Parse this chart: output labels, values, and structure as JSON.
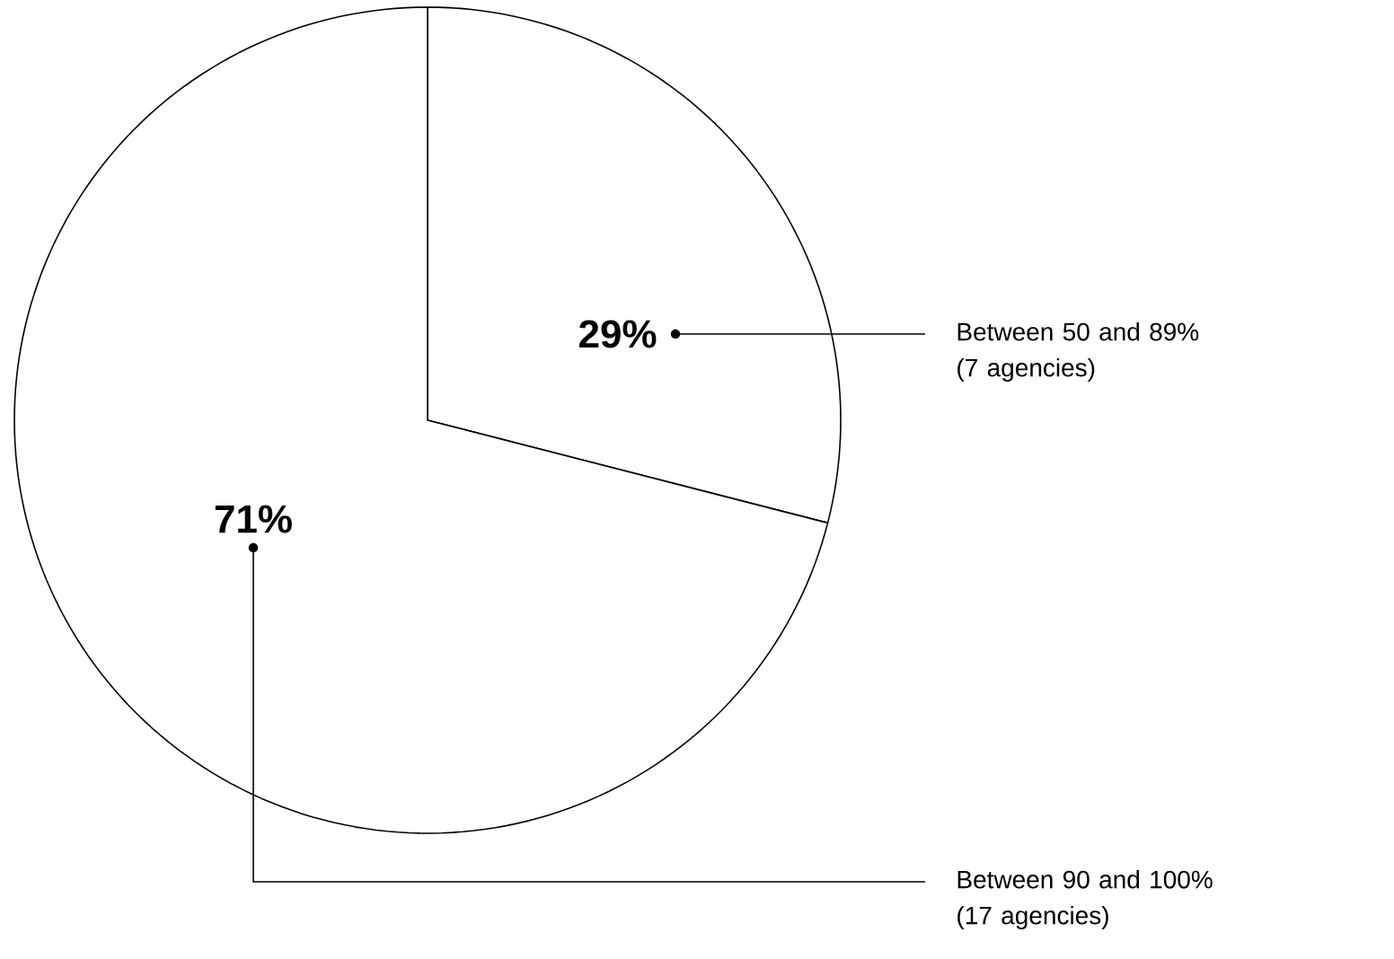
{
  "chart_data": {
    "type": "pie",
    "categories": [
      "Between 50 and 89% (7 agencies)",
      "Between 90 and 100% (17 agencies)"
    ],
    "values": [
      29,
      71
    ],
    "value_labels": [
      "29%",
      "71%"
    ],
    "colors": [
      "#ffffff",
      "#ffffff"
    ]
  }
}
